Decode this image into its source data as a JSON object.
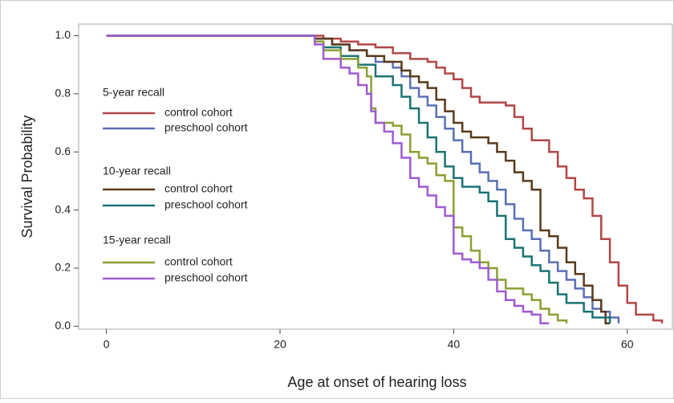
{
  "chart_data": {
    "type": "line",
    "drawstyle": "steps-post",
    "x_label": "Age at onset of hearing loss",
    "y_label": "Survival Probability",
    "xlim": [
      -3.2,
      65.2
    ],
    "ylim": [
      -0.01,
      1.04
    ],
    "xticks": [
      0,
      20,
      40,
      60
    ],
    "yticks": [
      {
        "value": 0,
        "label": "0.0"
      },
      0.2,
      0.4,
      0.6,
      0.8,
      {
        "value": 1,
        "label": "1.0"
      }
    ],
    "groups": [
      {
        "title": "5-year recall",
        "series": [
          {
            "name": "control cohort",
            "color": "#b24745",
            "x": [
              0,
              24,
              25,
              27,
              29,
              31,
              33,
              35,
              37,
              38,
              39,
              40,
              41,
              42,
              43,
              46,
              47,
              48,
              49,
              51,
              52,
              53,
              54,
              55,
              56,
              57,
              58,
              59,
              60,
              61,
              63,
              64
            ],
            "values": [
              1,
              1,
              0.99,
              0.98,
              0.97,
              0.96,
              0.94,
              0.92,
              0.91,
              0.89,
              0.87,
              0.85,
              0.82,
              0.79,
              0.77,
              0.76,
              0.72,
              0.68,
              0.64,
              0.6,
              0.55,
              0.51,
              0.47,
              0.44,
              0.38,
              0.3,
              0.22,
              0.14,
              0.08,
              0.04,
              0.02,
              0.01
            ]
          },
          {
            "name": "preschool cohort",
            "color": "#5a6fb5",
            "x": [
              0,
              24,
              26,
              28,
              30,
              31,
              33,
              34,
              35,
              36,
              37,
              38,
              39,
              40,
              41,
              42,
              43,
              44,
              45,
              46,
              47,
              48,
              49,
              50,
              51,
              52,
              53,
              54,
              55,
              56,
              57,
              58,
              59
            ],
            "values": [
              1,
              0.99,
              0.97,
              0.95,
              0.93,
              0.91,
              0.89,
              0.86,
              0.82,
              0.79,
              0.76,
              0.72,
              0.68,
              0.64,
              0.6,
              0.56,
              0.53,
              0.5,
              0.47,
              0.42,
              0.37,
              0.33,
              0.3,
              0.26,
              0.22,
              0.19,
              0.16,
              0.13,
              0.1,
              0.06,
              0.05,
              0.03,
              0.01
            ]
          }
        ]
      },
      {
        "title": "10-year recall",
        "series": [
          {
            "name": "control cohort",
            "color": "#5a3a1a",
            "x": [
              0,
              24,
              26,
              28,
              30,
              32,
              34,
              35,
              36,
              37,
              38,
              39,
              40,
              41,
              42,
              44,
              45,
              46,
              47,
              48,
              49,
              50,
              51,
              52,
              53,
              54,
              55,
              56,
              57,
              57.5,
              58
            ],
            "values": [
              1,
              0.99,
              0.97,
              0.95,
              0.93,
              0.91,
              0.88,
              0.86,
              0.84,
              0.82,
              0.78,
              0.74,
              0.7,
              0.67,
              0.65,
              0.63,
              0.6,
              0.57,
              0.53,
              0.5,
              0.47,
              0.33,
              0.31,
              0.27,
              0.22,
              0.18,
              0.14,
              0.09,
              0.05,
              0.01,
              0.01
            ]
          },
          {
            "name": "preschool cohort",
            "color": "#1a7373",
            "x": [
              0,
              24,
              25,
              27,
              29,
              31,
              33,
              34,
              35,
              36,
              37,
              38,
              39,
              40,
              41,
              43,
              44,
              45,
              46,
              47,
              48,
              49,
              50,
              51,
              52,
              53,
              55,
              56,
              58
            ],
            "values": [
              1,
              0.98,
              0.96,
              0.93,
              0.9,
              0.86,
              0.83,
              0.79,
              0.75,
              0.7,
              0.65,
              0.6,
              0.55,
              0.51,
              0.48,
              0.46,
              0.43,
              0.38,
              0.3,
              0.27,
              0.24,
              0.21,
              0.19,
              0.15,
              0.11,
              0.08,
              0.05,
              0.03,
              0.01
            ]
          }
        ]
      },
      {
        "title": "15-year recall",
        "series": [
          {
            "name": "control cohort",
            "color": "#8aa032",
            "x": [
              0,
              24,
              25,
              27,
              29,
              30,
              30.5,
              31,
              33,
              34,
              35,
              36,
              37,
              38,
              39,
              40,
              41,
              42,
              43,
              44,
              45,
              46,
              48,
              49,
              50,
              51,
              52,
              53
            ],
            "values": [
              1,
              0.98,
              0.95,
              0.92,
              0.89,
              0.86,
              0.75,
              0.7,
              0.69,
              0.66,
              0.6,
              0.58,
              0.56,
              0.52,
              0.5,
              0.34,
              0.31,
              0.26,
              0.22,
              0.2,
              0.16,
              0.13,
              0.11,
              0.09,
              0.06,
              0.04,
              0.02,
              0.01
            ]
          },
          {
            "name": "preschool cohort",
            "color": "#a05ad2",
            "x": [
              0,
              24,
              25,
              27,
              28,
              29,
              30,
              30.5,
              31,
              32,
              33,
              34,
              35,
              36,
              37,
              38,
              39,
              40,
              41,
              42,
              43,
              44,
              45,
              46,
              47,
              48,
              49,
              50,
              51
            ],
            "values": [
              1,
              0.97,
              0.92,
              0.89,
              0.87,
              0.83,
              0.8,
              0.74,
              0.7,
              0.67,
              0.63,
              0.58,
              0.51,
              0.48,
              0.45,
              0.41,
              0.38,
              0.25,
              0.23,
              0.22,
              0.2,
              0.16,
              0.12,
              0.09,
              0.07,
              0.05,
              0.04,
              0.01,
              0.01
            ]
          }
        ]
      }
    ]
  }
}
